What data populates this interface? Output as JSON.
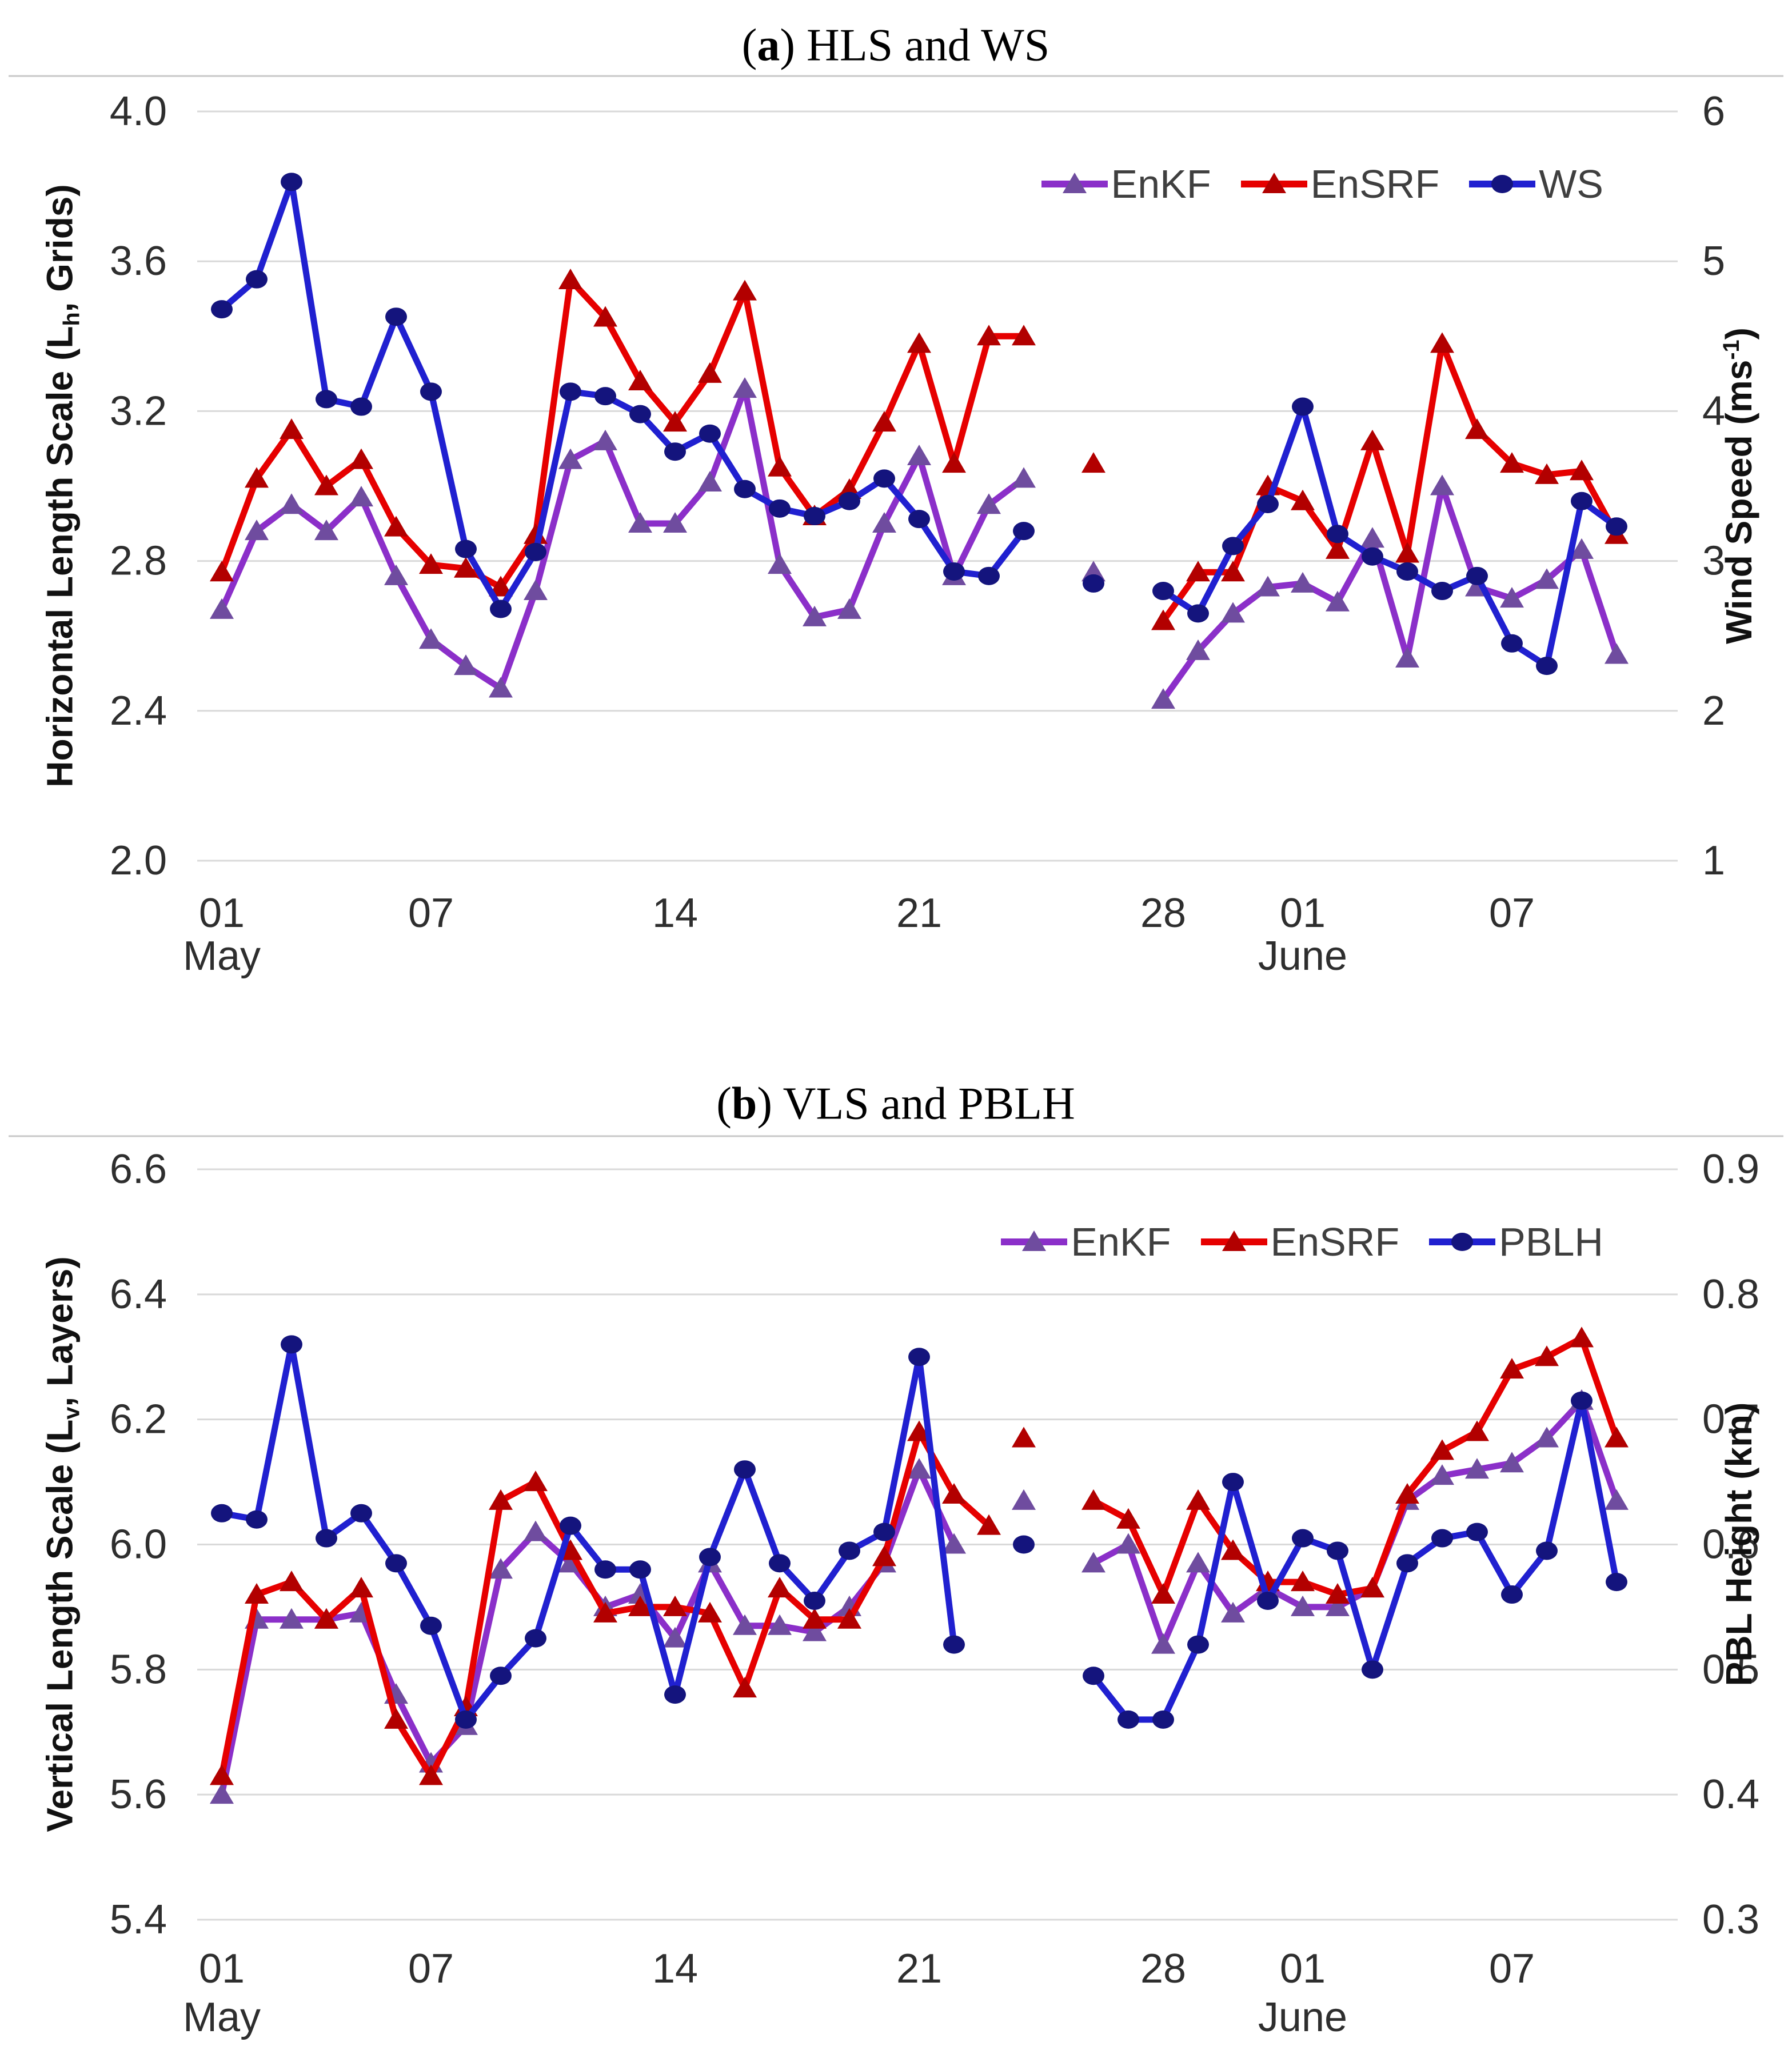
{
  "figure": {
    "background": "#ffffff"
  },
  "chart_data": [
    {
      "type": "line",
      "panel": "a",
      "title": "(a) HLS and WS",
      "title_parts": {
        "pre": "(",
        "key": "a",
        "post": ") HLS and WS"
      },
      "left_axis": {
        "label": "Horizontal Length Scale (Lh, Grids)",
        "label_parts": {
          "pre": "Horizontal Length Scale (L",
          "sub": "h",
          "post": ", Grids)"
        },
        "range": [
          2.0,
          4.0
        ],
        "ticks": [
          4.0,
          3.6,
          3.2,
          2.8,
          2.4,
          2.0
        ],
        "tick_labels": [
          "4.0",
          "3.6",
          "3.2",
          "2.8",
          "2.4",
          "2.0"
        ]
      },
      "right_axis": {
        "label": "Wind Speed (ms-1)",
        "label_parts": {
          "pre": "Wind Speed (ms",
          "sup": "-1",
          "post": ")"
        },
        "range": [
          1,
          6
        ],
        "ticks": [
          6,
          5,
          4,
          3,
          2,
          1
        ],
        "tick_labels": [
          "6",
          "5",
          "4",
          "3",
          "2",
          "1"
        ]
      },
      "x_axis": {
        "dates": [
          "May 01",
          "May 02",
          "May 03",
          "May 04",
          "May 05",
          "May 06",
          "May 07",
          "May 08",
          "May 09",
          "May 10",
          "May 11",
          "May 12",
          "May 13",
          "May 14",
          "May 15",
          "May 16",
          "May 17",
          "May 18",
          "May 19",
          "May 20",
          "May 21",
          "May 22",
          "May 23",
          "May 24",
          "May 25",
          "May 26",
          "May 27",
          "May 28",
          "May 29",
          "May 30",
          "May 31",
          "Jun 01",
          "Jun 02",
          "Jun 03",
          "Jun 04",
          "Jun 05",
          "Jun 06",
          "Jun 07",
          "Jun 08",
          "Jun 09",
          "Jun 10"
        ],
        "ticks": [
          {
            "label": "01",
            "day": 1
          },
          {
            "label": "07",
            "day": 7
          },
          {
            "label": "14",
            "day": 14
          },
          {
            "label": "21",
            "day": 21
          },
          {
            "label": "28",
            "day": 28
          },
          {
            "label": "01",
            "day": 32
          },
          {
            "label": "07",
            "day": 38
          }
        ],
        "months": [
          {
            "label": "May",
            "day": 1
          },
          {
            "label": "June",
            "day": 32
          }
        ]
      },
      "isolated_days": [
        26
      ],
      "grid": true,
      "legend_position": "top-right",
      "series": [
        {
          "name": "EnKF",
          "axis": "left",
          "marker": "triangle",
          "line_color": "#8B2FC9",
          "marker_color": "#6F4C9F",
          "values": [
            2.67,
            2.88,
            2.95,
            2.88,
            2.97,
            2.76,
            2.59,
            2.52,
            2.46,
            2.72,
            3.07,
            3.12,
            2.9,
            2.9,
            3.01,
            3.26,
            2.79,
            2.65,
            2.67,
            2.9,
            3.08,
            2.76,
            2.95,
            3.02,
            null,
            2.77,
            null,
            2.43,
            2.56,
            2.66,
            2.73,
            2.74,
            2.69,
            2.86,
            2.54,
            3.0,
            2.73,
            2.7,
            2.75,
            2.83,
            2.55
          ]
        },
        {
          "name": "EnSRF",
          "axis": "left",
          "marker": "triangle",
          "line_color": "#E60000",
          "marker_color": "#B20000",
          "values": [
            2.77,
            3.02,
            3.15,
            3.0,
            3.07,
            2.89,
            2.79,
            2.78,
            2.73,
            2.87,
            3.55,
            3.45,
            3.28,
            3.17,
            3.3,
            3.52,
            3.05,
            2.92,
            2.99,
            3.17,
            3.38,
            3.06,
            3.4,
            3.4,
            null,
            3.06,
            null,
            2.64,
            2.77,
            2.77,
            3.0,
            2.96,
            2.83,
            3.12,
            2.82,
            3.38,
            3.15,
            3.06,
            3.03,
            3.04,
            2.87
          ]
        },
        {
          "name": "WS",
          "axis": "right",
          "marker": "circle",
          "line_color": "#2020D0",
          "marker_color": "#14147D",
          "values": [
            4.68,
            4.88,
            5.53,
            4.08,
            4.03,
            4.63,
            4.13,
            3.08,
            2.68,
            3.06,
            4.13,
            4.1,
            3.98,
            3.73,
            3.85,
            3.48,
            3.35,
            3.3,
            3.4,
            3.55,
            3.28,
            2.93,
            2.9,
            3.2,
            null,
            2.85,
            null,
            2.8,
            2.65,
            3.1,
            3.38,
            4.03,
            3.18,
            3.03,
            2.93,
            2.8,
            2.9,
            2.45,
            2.3,
            3.4,
            3.23
          ]
        }
      ]
    },
    {
      "type": "line",
      "panel": "b",
      "title": "(b) VLS and PBLH",
      "title_parts": {
        "pre": "(",
        "key": "b",
        "post": ") VLS and PBLH"
      },
      "left_axis": {
        "label": "Vertical Length Scale (Lv, Layers)",
        "label_parts": {
          "pre": "Vertical Length Scale (L",
          "sub": "v",
          "post": ", Layers)"
        },
        "range": [
          5.4,
          6.6
        ],
        "ticks": [
          6.6,
          6.4,
          6.2,
          6.0,
          5.8,
          5.6,
          5.4
        ],
        "tick_labels": [
          "6.6",
          "6.4",
          "6.2",
          "6.0",
          "5.8",
          "5.6",
          "5.4"
        ]
      },
      "right_axis": {
        "label": "PBL Height (km)",
        "label_parts": {
          "pre": "PBL Height (km)",
          "sup": "",
          "post": ""
        },
        "range": [
          0.3,
          0.9
        ],
        "ticks": [
          0.9,
          0.8,
          0.7,
          0.6,
          0.5,
          0.4,
          0.3
        ],
        "tick_labels": [
          "0.9",
          "0.8",
          "0.7",
          "0.6",
          "0.5",
          "0.4",
          "0.3"
        ]
      },
      "x_axis": {
        "dates": [
          "May 01",
          "May 02",
          "May 03",
          "May 04",
          "May 05",
          "May 06",
          "May 07",
          "May 08",
          "May 09",
          "May 10",
          "May 11",
          "May 12",
          "May 13",
          "May 14",
          "May 15",
          "May 16",
          "May 17",
          "May 18",
          "May 19",
          "May 20",
          "May 21",
          "May 22",
          "May 23",
          "May 24",
          "May 25",
          "May 26",
          "May 27",
          "May 28",
          "May 29",
          "May 30",
          "May 31",
          "Jun 01",
          "Jun 02",
          "Jun 03",
          "Jun 04",
          "Jun 05",
          "Jun 06",
          "Jun 07",
          "Jun 08",
          "Jun 09",
          "Jun 10"
        ],
        "ticks": [
          {
            "label": "01",
            "day": 1
          },
          {
            "label": "07",
            "day": 7
          },
          {
            "label": "14",
            "day": 14
          },
          {
            "label": "21",
            "day": 21
          },
          {
            "label": "28",
            "day": 28
          },
          {
            "label": "01",
            "day": 32
          },
          {
            "label": "07",
            "day": 38
          }
        ],
        "months": [
          {
            "label": "May",
            "day": 1
          },
          {
            "label": "June",
            "day": 32
          }
        ]
      },
      "isolated_days": [
        24
      ],
      "grid": true,
      "legend_position": "top-right",
      "series": [
        {
          "name": "EnKF",
          "axis": "left",
          "marker": "triangle",
          "line_color": "#8B2FC9",
          "marker_color": "#6F4C9F",
          "values": [
            5.6,
            5.88,
            5.88,
            5.88,
            5.89,
            5.76,
            5.65,
            5.71,
            5.96,
            6.02,
            5.97,
            5.9,
            5.92,
            5.85,
            5.97,
            5.87,
            5.87,
            5.86,
            5.9,
            5.97,
            6.12,
            6.0,
            null,
            6.07,
            null,
            5.97,
            6.0,
            5.84,
            5.97,
            5.89,
            5.93,
            5.9,
            5.9,
            5.93,
            6.07,
            6.11,
            6.12,
            6.13,
            6.17,
            6.23,
            6.07
          ]
        },
        {
          "name": "EnSRF",
          "axis": "left",
          "marker": "triangle",
          "line_color": "#E60000",
          "marker_color": "#B20000",
          "values": [
            5.63,
            5.92,
            5.94,
            5.88,
            5.93,
            5.72,
            5.63,
            5.74,
            6.07,
            6.1,
            5.99,
            5.89,
            5.9,
            5.9,
            5.89,
            5.77,
            5.93,
            5.88,
            5.88,
            5.98,
            6.18,
            6.08,
            6.03,
            6.17,
            null,
            6.07,
            6.04,
            5.92,
            6.07,
            5.99,
            5.94,
            5.94,
            5.92,
            5.93,
            6.08,
            6.15,
            6.18,
            6.28,
            6.3,
            6.33,
            6.17
          ]
        },
        {
          "name": "PBLH",
          "axis": "right",
          "marker": "circle",
          "line_color": "#2020D0",
          "marker_color": "#14147D",
          "values": [
            0.625,
            0.62,
            0.76,
            0.605,
            0.625,
            0.585,
            0.535,
            0.46,
            0.495,
            0.525,
            0.615,
            0.58,
            0.58,
            0.48,
            0.59,
            0.66,
            0.585,
            0.555,
            0.595,
            0.61,
            0.75,
            0.52,
            null,
            0.6,
            null,
            0.495,
            0.46,
            0.46,
            0.52,
            0.65,
            0.555,
            0.605,
            0.595,
            0.5,
            0.585,
            0.605,
            0.61,
            0.56,
            0.595,
            0.715,
            0.57
          ]
        }
      ]
    }
  ]
}
